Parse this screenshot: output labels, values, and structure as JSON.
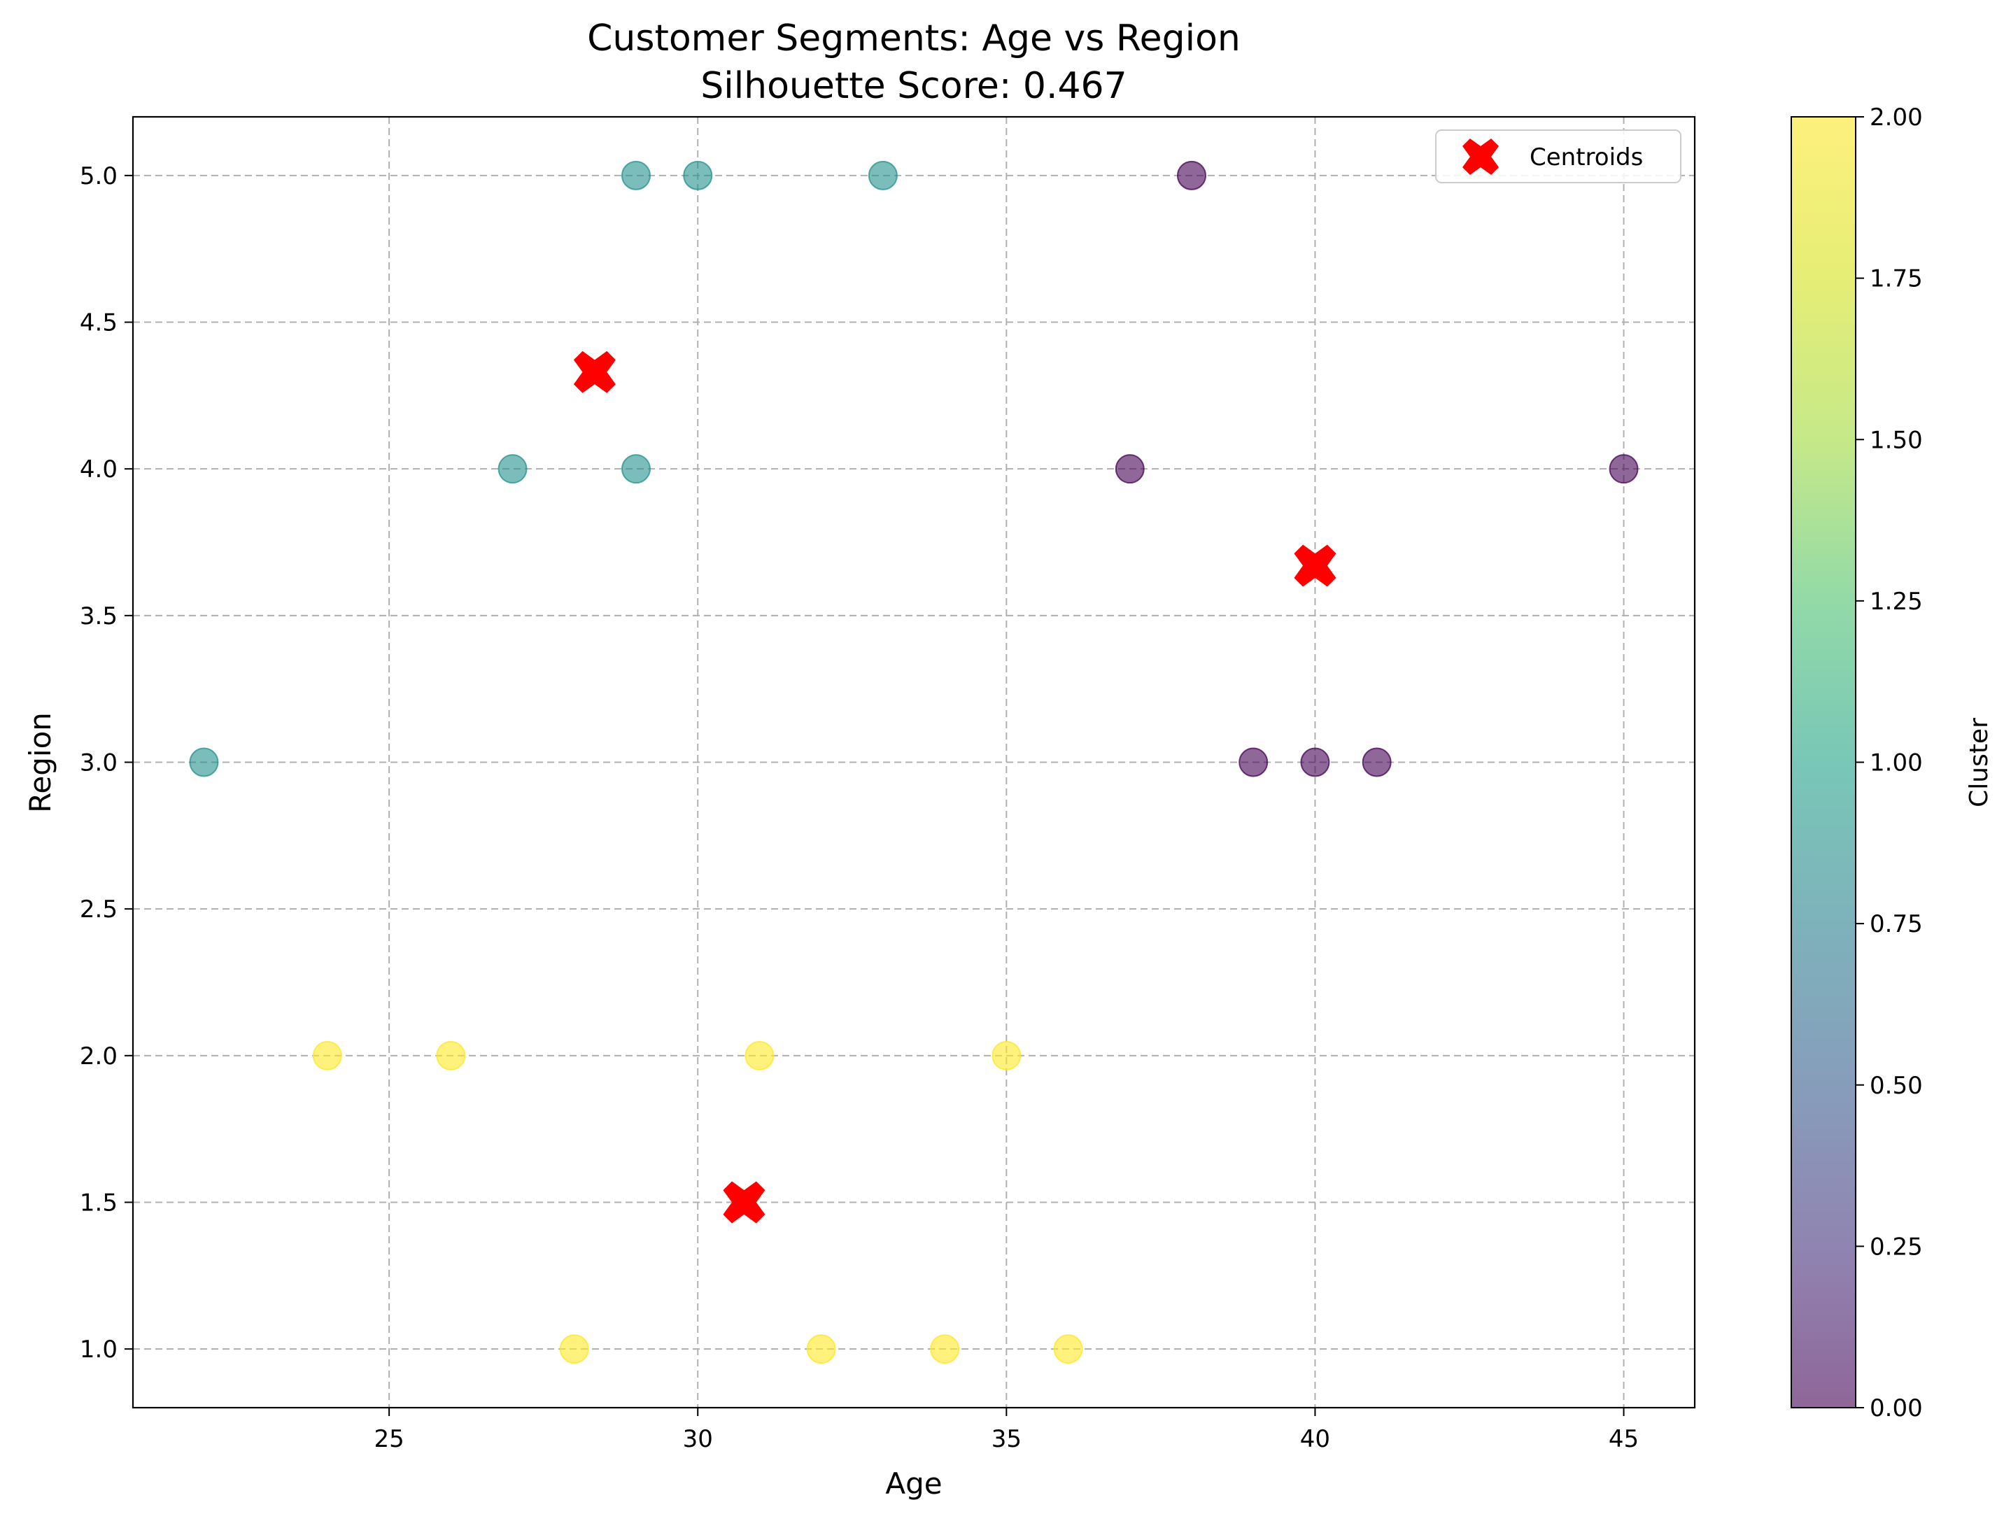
{
  "chart_data": {
    "type": "scatter",
    "title": "Customer Segments: Age vs Region",
    "subtitle": "Silhouette Score: 0.467",
    "xlabel": "Age",
    "ylabel": "Region",
    "xlim": [
      20.85,
      46.15
    ],
    "ylim": [
      0.8,
      5.2
    ],
    "xticks": [
      25,
      30,
      35,
      40,
      45
    ],
    "yticks": [
      1.0,
      1.5,
      2.0,
      2.5,
      3.0,
      3.5,
      4.0,
      4.5,
      5.0
    ],
    "grid": true,
    "legend": {
      "location": "upper right",
      "entries": [
        "Centroids"
      ]
    },
    "colors": {
      "cluster_0": "#440154",
      "cluster_1": "#21918c",
      "cluster_2": "#fde725",
      "centroid": "#ff0000"
    },
    "point_alpha": 0.6,
    "points": [
      {
        "x": 38,
        "y": 5,
        "cluster": 0
      },
      {
        "x": 37,
        "y": 4,
        "cluster": 0
      },
      {
        "x": 45,
        "y": 4,
        "cluster": 0
      },
      {
        "x": 39,
        "y": 3,
        "cluster": 0
      },
      {
        "x": 40,
        "y": 3,
        "cluster": 0
      },
      {
        "x": 41,
        "y": 3,
        "cluster": 0
      },
      {
        "x": 29,
        "y": 5,
        "cluster": 1
      },
      {
        "x": 30,
        "y": 5,
        "cluster": 1
      },
      {
        "x": 33,
        "y": 5,
        "cluster": 1
      },
      {
        "x": 27,
        "y": 4,
        "cluster": 1
      },
      {
        "x": 29,
        "y": 4,
        "cluster": 1
      },
      {
        "x": 22,
        "y": 3,
        "cluster": 1
      },
      {
        "x": 24,
        "y": 2,
        "cluster": 2
      },
      {
        "x": 26,
        "y": 2,
        "cluster": 2
      },
      {
        "x": 31,
        "y": 2,
        "cluster": 2
      },
      {
        "x": 35,
        "y": 2,
        "cluster": 2
      },
      {
        "x": 28,
        "y": 1,
        "cluster": 2
      },
      {
        "x": 32,
        "y": 1,
        "cluster": 2
      },
      {
        "x": 34,
        "y": 1,
        "cluster": 2
      },
      {
        "x": 36,
        "y": 1,
        "cluster": 2
      }
    ],
    "centroids": [
      {
        "name": "Centroids",
        "x": 28.33,
        "y": 4.33
      },
      {
        "name": "Centroids",
        "x": 40.0,
        "y": 3.67
      },
      {
        "name": "Centroids",
        "x": 30.75,
        "y": 1.5
      }
    ],
    "colorbar": {
      "label": "Cluster",
      "range": [
        0.0,
        2.0
      ],
      "ticks": [
        "0.00",
        "0.25",
        "0.50",
        "0.75",
        "1.00",
        "1.25",
        "1.50",
        "1.75",
        "2.00"
      ],
      "tick_values": [
        0,
        0.25,
        0.5,
        0.75,
        1.0,
        1.25,
        1.5,
        1.75,
        2.0
      ]
    }
  }
}
